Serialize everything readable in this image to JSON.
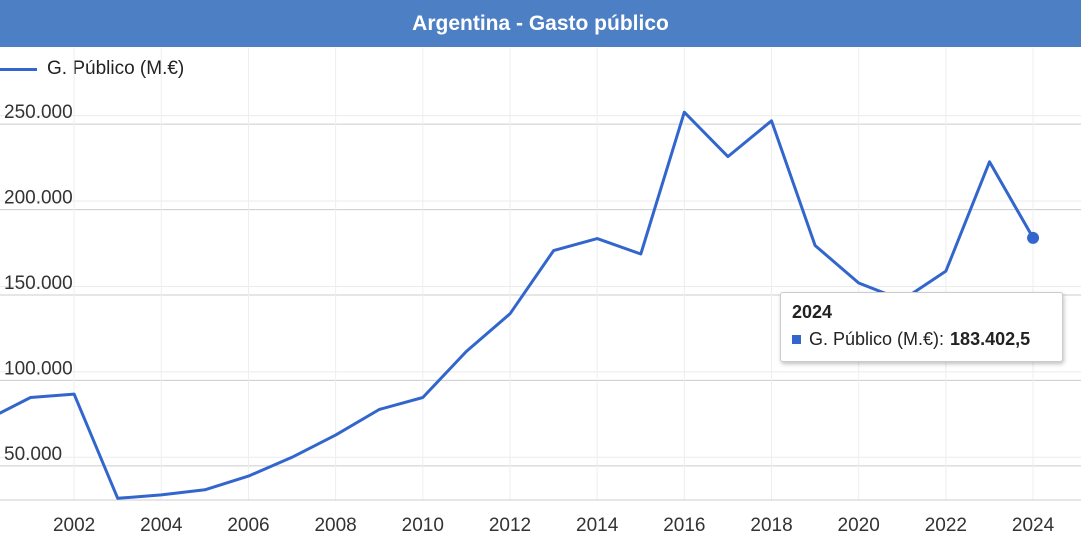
{
  "header": {
    "title": "Argentina - Gasto público"
  },
  "legend": {
    "series_label": "G. Público (M.€)"
  },
  "tooltip": {
    "year": "2024",
    "series_label": "G. Público (M.€):",
    "value": "183.402,5"
  },
  "chart_data": {
    "type": "line",
    "title": "Argentina - Gasto público",
    "xlabel": "",
    "ylabel": "",
    "xlim": [
      2000.3,
      2025.1
    ],
    "ylim": [
      30000,
      270000
    ],
    "x_ticks": [
      2002,
      2004,
      2006,
      2008,
      2010,
      2012,
      2014,
      2016,
      2018,
      2020,
      2022,
      2024
    ],
    "y_ticks": [
      50000,
      100000,
      150000,
      200000,
      250000
    ],
    "y_tick_labels": [
      "50.000",
      "100.000",
      "150.000",
      "200.000",
      "250.000"
    ],
    "grid": true,
    "legend_position": "top-left",
    "color": "#3366cc",
    "series": [
      {
        "name": "G. Público (M.€)",
        "x": [
          2000,
          2001,
          2002,
          2003,
          2004,
          2005,
          2006,
          2007,
          2008,
          2009,
          2010,
          2011,
          2012,
          2013,
          2014,
          2015,
          2016,
          2017,
          2018,
          2019,
          2020,
          2021,
          2022,
          2023,
          2024
        ],
        "values": [
          77000,
          90000,
          92000,
          31000,
          33000,
          36000,
          44000,
          55000,
          68000,
          83000,
          90000,
          117000,
          139000,
          176000,
          183000,
          174000,
          257000,
          231000,
          252000,
          179000,
          157000,
          147000,
          164000,
          228000,
          183402.5
        ]
      }
    ]
  }
}
